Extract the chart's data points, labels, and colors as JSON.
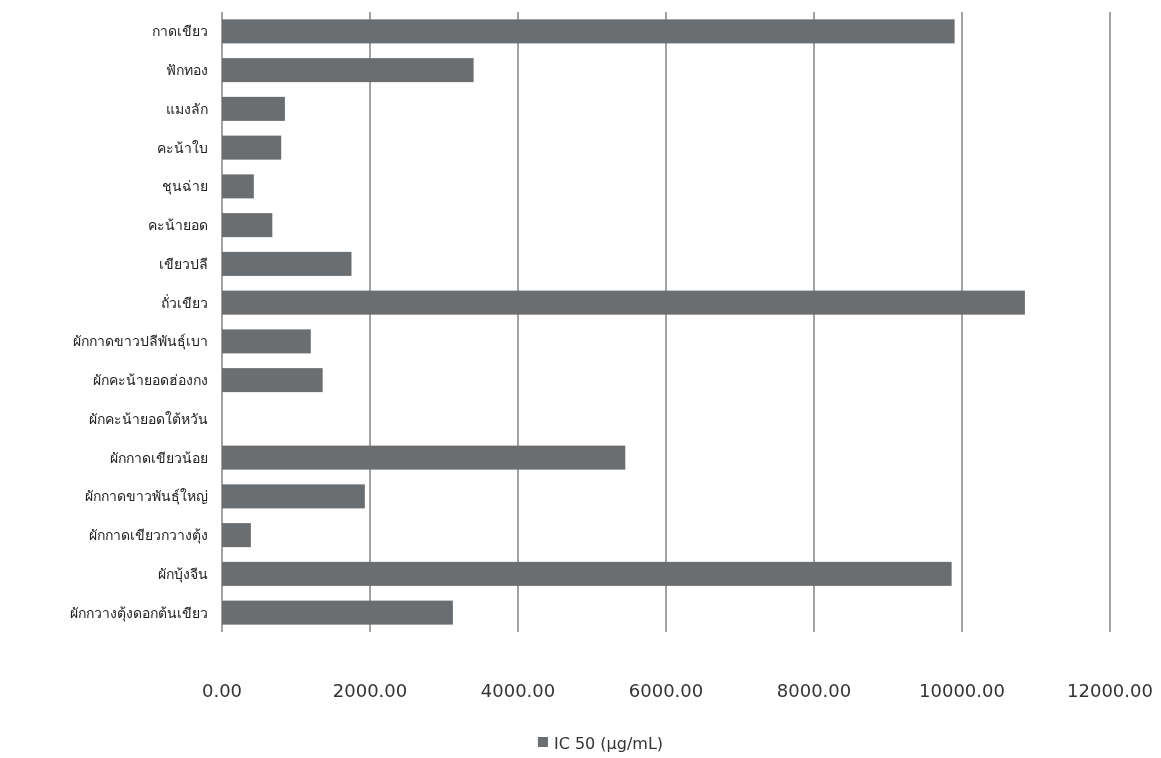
{
  "chart_data": {
    "type": "bar",
    "orientation": "horizontal",
    "categories": [
      "กาดเขียว",
      "ฟักทอง",
      "แมงลัก",
      "คะน้าใบ",
      "ชุนฉ่าย",
      "คะน้ายอด",
      "เขียวปลี",
      "ถั่วเขียว",
      "ผักกาดขาวปลีพันธุ์เบา",
      "ผักคะน้ายอดฮ่องกง",
      "ผักคะน้ายอดใต้หวัน",
      "ผักกาดเขียวน้อย",
      "ผักกาดขาวพันธุ์ใหญ่",
      "ผักกาดเขียวกวางตุ้ง",
      "ผักบุ้งจีน",
      "ผักกวางตุ้งดอกต้นเขียว"
    ],
    "series": [
      {
        "name": "IC 50 (µg/mL)",
        "color": "#6b6e70",
        "values": [
          9900,
          3400,
          850,
          800,
          430,
          680,
          1750,
          10850,
          1200,
          1360,
          null,
          5450,
          1930,
          390,
          9860,
          3120
        ]
      }
    ],
    "xlim": [
      0,
      12000
    ],
    "xticks": [
      {
        "value": 0,
        "label": "0.00"
      },
      {
        "value": 2000,
        "label": "2000.00"
      },
      {
        "value": 4000,
        "label": "4000.00"
      },
      {
        "value": 6000,
        "label": "6000.00"
      },
      {
        "value": 8000,
        "label": "8000.00"
      },
      {
        "value": 10000,
        "label": "10000.00"
      },
      {
        "value": 12000,
        "label": "12000.00"
      }
    ],
    "grid": "x",
    "legend": "bottom"
  }
}
